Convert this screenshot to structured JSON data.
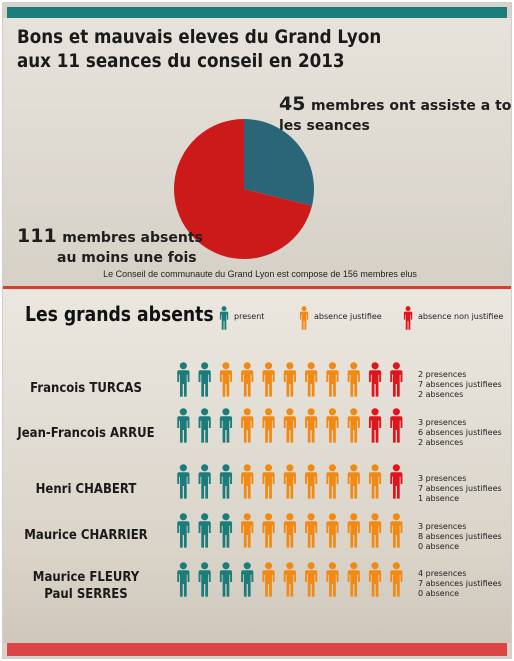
{
  "title_lines": [
    "Bons et mauvais eleves du Grand Lyon",
    "aux 11 seances du conseil en 2013"
  ],
  "colors": {
    "present": "#1b7c7a",
    "excused": "#f08a14",
    "unexcused": "#e0141c",
    "pie_present": "#2a6677",
    "pie_absent": "#cc1a1a",
    "accent_bar": "#dd4444",
    "top_bar": "#1b7c7a",
    "divider": "#e03a2a"
  },
  "chart_data": [
    {
      "type": "pie",
      "title": "",
      "slices": [
        {
          "label": "membres ont assiste a toutes les seances",
          "value": 45
        },
        {
          "label": "membres absents au moins une fois",
          "value": 111
        }
      ]
    },
    {
      "type": "table",
      "title": "Les grands absents",
      "legend": [
        "present",
        "absence justifiee",
        "absence non justifiee"
      ],
      "rows": [
        {
          "name": "Francois TURCAS",
          "present": 2,
          "excused": 7,
          "unexcused": 2
        },
        {
          "name": "Jean-Francois ARRUE",
          "present": 3,
          "excused": 6,
          "unexcused": 2
        },
        {
          "name": "Henri CHABERT",
          "present": 3,
          "excused": 7,
          "unexcused": 1
        },
        {
          "name": "Maurice CHARRIER",
          "present": 3,
          "excused": 8,
          "unexcused": 0
        },
        {
          "name": "Maurice FLEURY\nPaul SERRES",
          "present": 4,
          "excused": 7,
          "unexcused": 0
        }
      ]
    }
  ],
  "callouts": {
    "present": {
      "number": "45",
      "text1": "membres ont assiste a toutes",
      "text2": "les seances"
    },
    "absent": {
      "number": "111",
      "text1": "membres absents",
      "text2": "au moins une fois"
    }
  },
  "footnote": "Le Conseil de communaute du Grand Lyon est compose de 156 membres elus",
  "section_title": "Les grands absents",
  "legend": {
    "present": "present",
    "excused": "absence justifiee",
    "unexcused": "absence non justifiee"
  },
  "people": [
    {
      "name": "Francois TURCAS",
      "stats": [
        "2 presences",
        "7 absences justifiees",
        "2 absences"
      ]
    },
    {
      "name": "Jean-Francois ARRUE",
      "stats": [
        "3 presences",
        "6 absences justifiees",
        "2 absences"
      ]
    },
    {
      "name": "Henri CHABERT",
      "stats": [
        "3 presences",
        "7 absences justifiees",
        "1 absence"
      ]
    },
    {
      "name": "Maurice CHARRIER",
      "stats": [
        "3 presences",
        "8 absences justifiees",
        "0 absence"
      ]
    },
    {
      "name_lines": [
        "Maurice FLEURY",
        "Paul SERRES"
      ],
      "stats": [
        "4 presences",
        "7 absences justifiees",
        "0 absence"
      ]
    }
  ],
  "icons": {
    "person": "person-icon"
  }
}
